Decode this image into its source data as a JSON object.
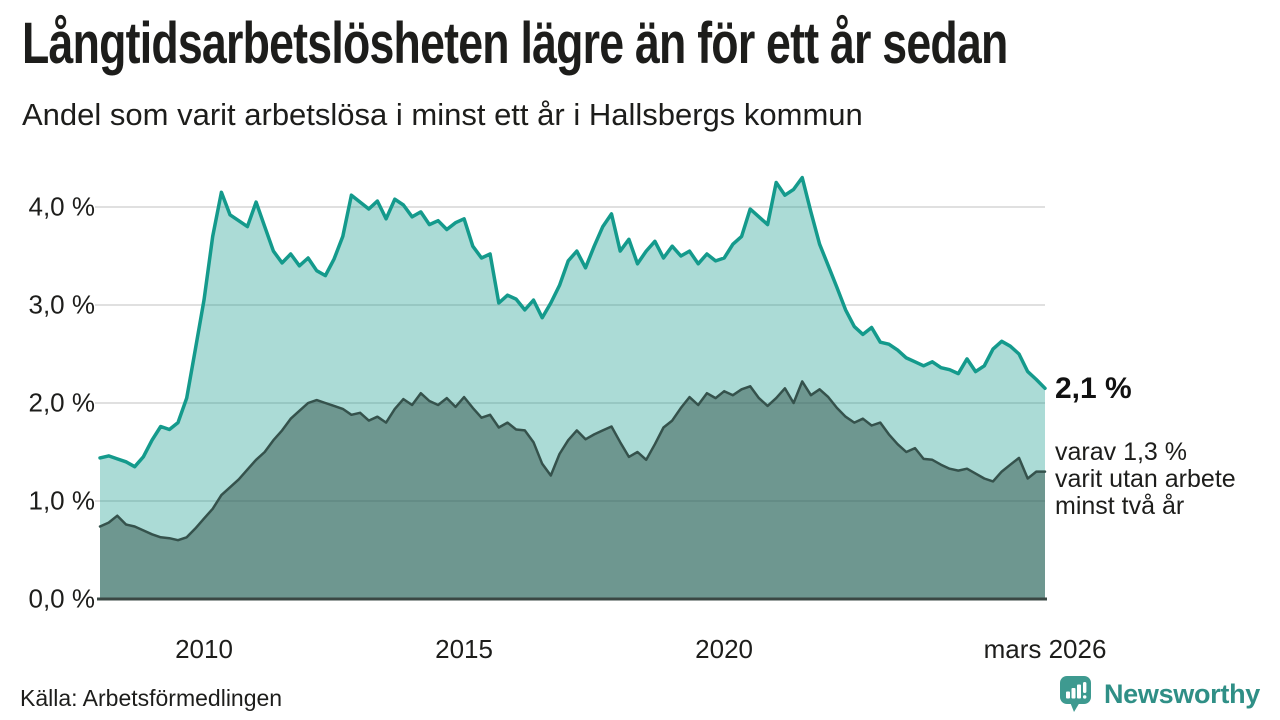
{
  "header": {
    "title": "Långtidsarbetslösheten lägre än för ett år sedan",
    "subtitle": "Andel som varit arbetslösa i minst ett år i Hallsbergs kommun"
  },
  "annotations": {
    "end_value": "2,1 %",
    "sub_lines": [
      "varav 1,3 %",
      "varit utan arbete",
      "minst två år"
    ]
  },
  "footer": {
    "source": "Källa: Arbetsförmedlingen",
    "brand": "Newsworthy"
  },
  "colors": {
    "accent_teal": "#149a8c",
    "light_fill": "rgba(21,154,140,0.36)",
    "dark_stroke": "#35524c",
    "dark_fill": "rgba(42,74,66,0.47)",
    "grid": "#e0e0e0",
    "baseline": "#3a4743",
    "text": "#1d1d1b",
    "brand_teal": "#2f8f86"
  },
  "chart_data": {
    "type": "area",
    "title": "Andel som varit arbetslösa i minst ett år i Hallsbergs kommun",
    "x_domain": [
      2008.0,
      2026.17
    ],
    "ylim": [
      0,
      4.4
    ],
    "grid": true,
    "legend": "none (direct labels at line ends)",
    "y_ticks": [
      {
        "value": 0,
        "label": "0,0 %"
      },
      {
        "value": 1,
        "label": "1,0 %"
      },
      {
        "value": 2,
        "label": "2,0 %"
      },
      {
        "value": 3,
        "label": "3,0 %"
      },
      {
        "value": 4,
        "label": "4,0 %"
      }
    ],
    "x_ticks": [
      {
        "year": 2010,
        "label": "2010"
      },
      {
        "year": 2015,
        "label": "2015"
      },
      {
        "year": 2020,
        "label": "2020"
      },
      {
        "year": 2026.17,
        "label": "mars 2026"
      }
    ],
    "series": [
      {
        "name": "arbetslösa minst ett år",
        "end_label": "2,1 %",
        "end_value": 2.1,
        "stroke": "#149a8c",
        "fill": "rgba(21,154,140,0.36)",
        "stroke_width": 3.5,
        "values": [
          1.44,
          1.46,
          1.43,
          1.4,
          1.35,
          1.45,
          1.62,
          1.76,
          1.73,
          1.8,
          2.05,
          2.55,
          3.05,
          3.7,
          4.15,
          3.92,
          3.86,
          3.8,
          4.05,
          3.8,
          3.55,
          3.43,
          3.52,
          3.4,
          3.48,
          3.35,
          3.3,
          3.47,
          3.7,
          4.12,
          4.05,
          3.98,
          4.06,
          3.88,
          4.08,
          4.02,
          3.9,
          3.95,
          3.82,
          3.86,
          3.77,
          3.84,
          3.88,
          3.6,
          3.48,
          3.52,
          3.02,
          3.1,
          3.06,
          2.95,
          3.05,
          2.87,
          3.02,
          3.2,
          3.45,
          3.55,
          3.38,
          3.6,
          3.8,
          3.93,
          3.55,
          3.67,
          3.42,
          3.55,
          3.65,
          3.48,
          3.6,
          3.5,
          3.55,
          3.42,
          3.52,
          3.45,
          3.48,
          3.62,
          3.7,
          3.98,
          3.9,
          3.82,
          4.25,
          4.12,
          4.18,
          4.3,
          3.95,
          3.62,
          3.4,
          3.18,
          2.95,
          2.78,
          2.7,
          2.77,
          2.62,
          2.6,
          2.54,
          2.46,
          2.42,
          2.38,
          2.42,
          2.36,
          2.34,
          2.3,
          2.45,
          2.32,
          2.38,
          2.55,
          2.63,
          2.58,
          2.5,
          2.32,
          2.24,
          2.15
        ]
      },
      {
        "name": "varav utan arbete minst två år",
        "end_label": "varav 1,3 % varit utan arbete minst två år",
        "end_value": 1.3,
        "stroke": "#35524c",
        "fill": "rgba(42,74,66,0.47)",
        "stroke_width": 2.5,
        "values": [
          0.74,
          0.78,
          0.85,
          0.76,
          0.74,
          0.7,
          0.66,
          0.63,
          0.62,
          0.6,
          0.63,
          0.72,
          0.82,
          0.92,
          1.06,
          1.14,
          1.22,
          1.32,
          1.42,
          1.5,
          1.62,
          1.72,
          1.84,
          1.92,
          2.0,
          2.03,
          2.0,
          1.97,
          1.94,
          1.88,
          1.9,
          1.82,
          1.86,
          1.8,
          1.94,
          2.04,
          1.98,
          2.1,
          2.02,
          1.98,
          2.05,
          1.96,
          2.06,
          1.95,
          1.85,
          1.88,
          1.75,
          1.8,
          1.73,
          1.72,
          1.6,
          1.38,
          1.26,
          1.48,
          1.62,
          1.72,
          1.63,
          1.68,
          1.72,
          1.76,
          1.6,
          1.45,
          1.5,
          1.42,
          1.58,
          1.75,
          1.82,
          1.95,
          2.06,
          1.98,
          2.1,
          2.05,
          2.12,
          2.08,
          2.14,
          2.17,
          2.05,
          1.97,
          2.05,
          2.15,
          2.0,
          2.22,
          2.08,
          2.14,
          2.06,
          1.95,
          1.86,
          1.8,
          1.84,
          1.77,
          1.8,
          1.68,
          1.58,
          1.5,
          1.54,
          1.43,
          1.42,
          1.37,
          1.33,
          1.31,
          1.33,
          1.28,
          1.23,
          1.2,
          1.3,
          1.37,
          1.44,
          1.23,
          1.3,
          1.3
        ]
      }
    ]
  }
}
